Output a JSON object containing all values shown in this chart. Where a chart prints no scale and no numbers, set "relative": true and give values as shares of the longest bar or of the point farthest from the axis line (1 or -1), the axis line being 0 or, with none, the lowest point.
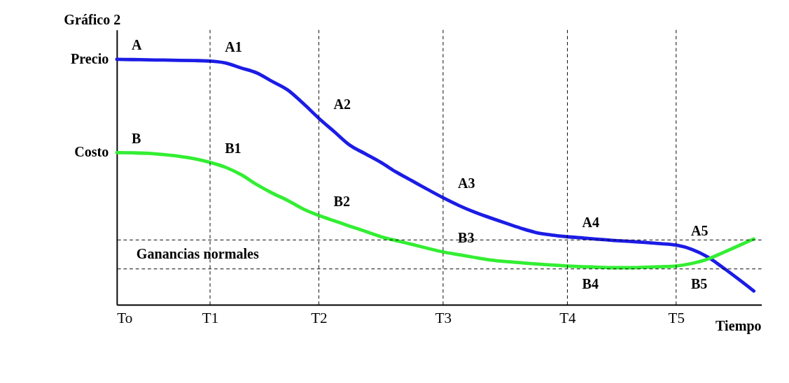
{
  "chart_data": {
    "type": "line",
    "title": "Gráfico 2",
    "xlabel": "Tiempo",
    "relative": true,
    "tick_labels": "x",
    "marker": "none",
    "line_style": "solid",
    "categories": [
      "To",
      null,
      null,
      null,
      null,
      null,
      "T1",
      null,
      null,
      null,
      null,
      null,
      null,
      "T2",
      null,
      null,
      null,
      null,
      null,
      null,
      null,
      "T3",
      null,
      null,
      null,
      null,
      null,
      null,
      null,
      "T4",
      null,
      null,
      null,
      null,
      null,
      null,
      "T5",
      null,
      null,
      null,
      null,
      null
    ],
    "series": [
      {
        "color": "#1c1ce6",
        "values": [
          1.0,
          0.999,
          0.998,
          0.997,
          0.996,
          0.995,
          0.993,
          0.985,
          0.965,
          0.945,
          0.91,
          0.875,
          0.82,
          0.76,
          0.705,
          0.65,
          0.615,
          0.58,
          0.54,
          0.505,
          0.47,
          0.436,
          0.405,
          0.378,
          0.355,
          0.333,
          0.312,
          0.294,
          0.284,
          0.277,
          0.272,
          0.267,
          0.262,
          0.258,
          0.254,
          0.249,
          0.243,
          0.226,
          0.196,
          0.152,
          0.105,
          0.056
        ]
      },
      {
        "color": "#33ee33",
        "values": [
          0.62,
          0.619,
          0.617,
          0.612,
          0.605,
          0.595,
          0.58,
          0.56,
          0.53,
          0.49,
          0.455,
          0.425,
          0.39,
          0.364,
          0.342,
          0.32,
          0.299,
          0.277,
          0.261,
          0.246,
          0.23,
          0.215,
          0.204,
          0.193,
          0.183,
          0.176,
          0.171,
          0.166,
          0.162,
          0.158,
          0.155,
          0.153,
          0.151,
          0.151,
          0.153,
          0.155,
          0.158,
          0.168,
          0.185,
          0.212,
          0.24,
          0.268
        ]
      }
    ],
    "ref_lines": [
      {
        "axis": "x",
        "value": "T1",
        "line_style": "dashed",
        "color": "#000000"
      },
      {
        "axis": "x",
        "value": "T2",
        "line_style": "dashed",
        "color": "#000000"
      },
      {
        "axis": "x",
        "value": "T3",
        "line_style": "dashed",
        "color": "#000000"
      },
      {
        "axis": "x",
        "value": "T4",
        "line_style": "dashed",
        "color": "#000000"
      },
      {
        "axis": "x",
        "value": "T5",
        "line_style": "dashed",
        "color": "#000000"
      },
      {
        "axis": "y",
        "value": 0.264,
        "line_style": "dashed",
        "color": "#000000"
      },
      {
        "axis": "y",
        "value": 0.146,
        "line_style": "dashed",
        "color": "#000000"
      }
    ],
    "annotations": [
      {
        "text": "Precio",
        "x": "To",
        "y": 1.0
      },
      {
        "text": "Costo",
        "x": "To",
        "y": 0.62
      },
      {
        "text": "A",
        "x": "To",
        "y": 1.0
      },
      {
        "text": "A1",
        "x": "T1",
        "y": 0.993
      },
      {
        "text": "A2",
        "x": "T2",
        "y": 0.76
      },
      {
        "text": "A3",
        "x": "T3",
        "y": 0.436
      },
      {
        "text": "A4",
        "x": "T4",
        "y": 0.277
      },
      {
        "text": "A5",
        "x": "T5",
        "y": 0.243
      },
      {
        "text": "B",
        "x": "To",
        "y": 0.62
      },
      {
        "text": "B1",
        "x": "T1",
        "y": 0.58
      },
      {
        "text": "B2",
        "x": "T2",
        "y": 0.364
      },
      {
        "text": "B3",
        "x": "T3",
        "y": 0.215
      },
      {
        "text": "B4",
        "x": "T4",
        "y": 0.158
      },
      {
        "text": "B5",
        "x": "T5",
        "y": 0.158
      },
      "Ganancias normales"
    ]
  }
}
